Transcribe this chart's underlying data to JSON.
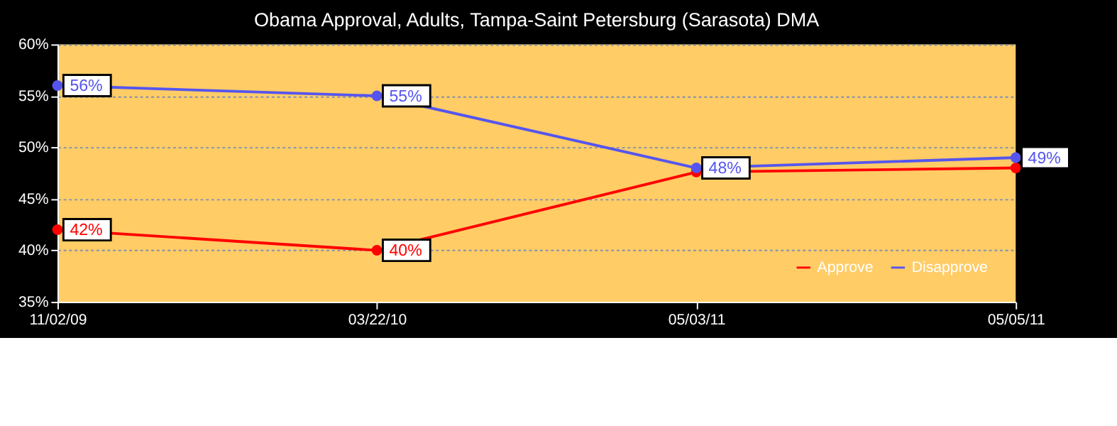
{
  "chart_data": {
    "type": "line",
    "title": "Obama Approval, Adults, Tampa-Saint Petersburg (Sarasota) DMA",
    "categories": [
      "11/02/09",
      "03/22/10",
      "05/03/11",
      "05/05/11"
    ],
    "series": [
      {
        "name": "Approve",
        "color": "#ff0000",
        "values": [
          42,
          40,
          47.6,
          48
        ],
        "value_labels": [
          "42%",
          "40%",
          null,
          null
        ]
      },
      {
        "name": "Disapprove",
        "color": "#5555ee",
        "values": [
          56,
          55,
          48,
          49
        ],
        "value_labels": [
          "56%",
          "55%",
          "48%",
          "49%"
        ]
      }
    ],
    "ylim": [
      35,
      60
    ],
    "yticks": [
      {
        "value": 35,
        "label": "35%"
      },
      {
        "value": 40,
        "label": "40%"
      },
      {
        "value": 45,
        "label": "45%"
      },
      {
        "value": 50,
        "label": "50%"
      },
      {
        "value": 55,
        "label": "55%"
      },
      {
        "value": 60,
        "label": "60%"
      }
    ],
    "grid": "y",
    "legend": "bottom right",
    "marker": "circle",
    "line_style": "solid"
  }
}
